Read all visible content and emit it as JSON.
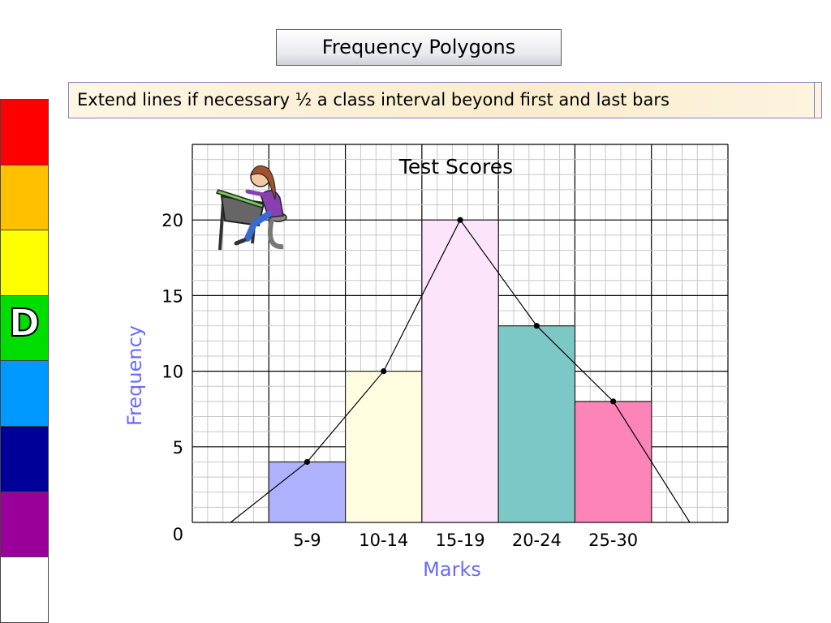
{
  "slide_title": "Frequency Polygons",
  "instruction": "Extend lines if necessary ½ a class interval beyond first and last bars",
  "level_strip": {
    "colors": [
      "#ff0000",
      "#ffc000",
      "#ffff00",
      "#00dd00",
      "#0099ff",
      "#000099",
      "#990099",
      "#ffffff"
    ],
    "active_letter": "D",
    "active_index": 3
  },
  "chart_data": {
    "type": "bar",
    "title": "Test Scores",
    "xlabel": "Marks",
    "ylabel": "Frequency",
    "categories": [
      "5-9",
      "10-14",
      "15-19",
      "20-24",
      "25-30"
    ],
    "values": [
      4,
      10,
      20,
      13,
      8
    ],
    "bar_colors": [
      "#aeb1fb",
      "#fefde0",
      "#fce5fb",
      "#7cc8c6",
      "#fc84b6"
    ],
    "yticks": [
      0,
      5,
      10,
      15,
      20
    ],
    "ylim": [
      0,
      25
    ],
    "polygon": {
      "points": [
        [
          0,
          0
        ],
        [
          1,
          4
        ],
        [
          2,
          10
        ],
        [
          3,
          20
        ],
        [
          4,
          13
        ],
        [
          5,
          8
        ],
        [
          6,
          0
        ]
      ]
    },
    "grid": true,
    "label_color": "#6a6cf6",
    "clipart": "student-writing-at-desk"
  }
}
